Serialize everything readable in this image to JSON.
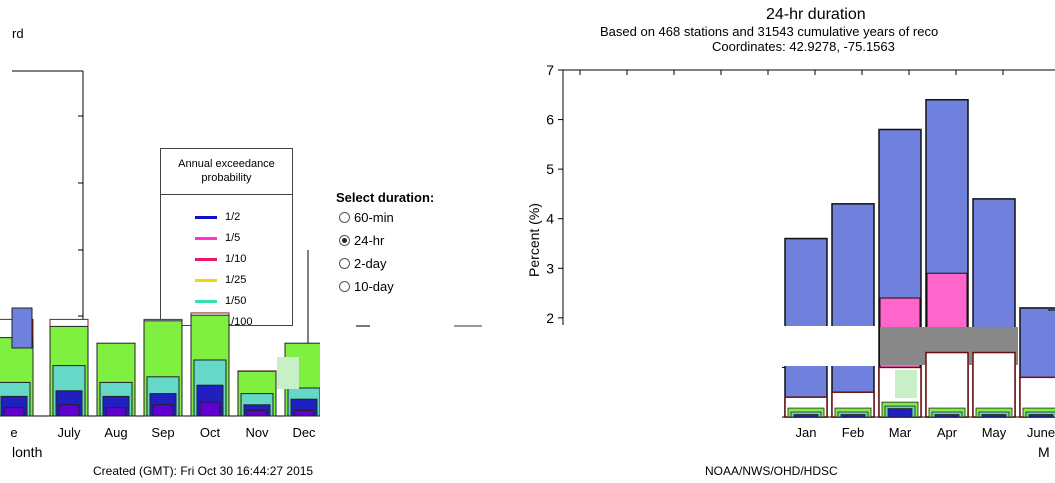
{
  "left_panel": {
    "header_fragment": "rd",
    "x_axis_fragment": "lonth",
    "created": "Created (GMT): Fri Oct 30 16:44:27 2015",
    "legend": {
      "title_line1": "Annual exceedance",
      "title_line2": "probability",
      "items": [
        {
          "label": "1/2",
          "color": "#1010c8"
        },
        {
          "label": "1/5",
          "color": "#ff33cc"
        },
        {
          "label": "1/10",
          "color": "#e8186a"
        },
        {
          "label": "1/25",
          "color": "#f5d800"
        },
        {
          "label": "1/50",
          "color": "#33e0b0"
        },
        {
          "label": "1/100",
          "color": "#40d020"
        }
      ]
    }
  },
  "duration_selector": {
    "label": "Select duration:",
    "options": [
      {
        "label": "60-min",
        "checked": false
      },
      {
        "label": "24-hr",
        "checked": true
      },
      {
        "label": "2-day",
        "checked": false
      },
      {
        "label": "10-day",
        "checked": false
      }
    ]
  },
  "right_panel": {
    "title": "24-hr duration",
    "subtitle1": "Based on 468 stations and 31543 cumulative years of reco",
    "subtitle2": "Coordinates: 42.9278, -75.1563",
    "ylabel": "Percent (%)",
    "x_axis_fragment": "M",
    "footer": "NOAA/NWS/OHD/HDSC"
  },
  "colors": {
    "bar_blue": "#7080dd",
    "bar_pink": "#ff66cc",
    "bar_green": "#80f040",
    "bar_teal": "#66d8c8",
    "bar_navy": "#2020c0",
    "bar_purple": "#6000d0"
  },
  "chart_data": [
    {
      "type": "bar",
      "title": "",
      "xlabel": "lonth",
      "ylabel": "",
      "categories": [
        "e",
        "July",
        "Aug",
        "Sep",
        "Oct",
        "Nov",
        "Dec"
      ],
      "series": [
        {
          "name": "1/100",
          "values": [
            1.4,
            1.6,
            1.3,
            1.7,
            1.8,
            0.8,
            1.3
          ]
        },
        {
          "name": "1/50",
          "values": [
            0.6,
            0.9,
            0.6,
            0.7,
            1.0,
            0.4,
            0.5
          ]
        },
        {
          "name": "1/25",
          "values": [
            0.35,
            0.45,
            0.35,
            0.4,
            0.55,
            0.2,
            0.3
          ]
        },
        {
          "name": "1/2",
          "values": [
            0.15,
            0.2,
            0.15,
            0.2,
            0.25,
            0.1,
            0.1
          ]
        }
      ]
    },
    {
      "type": "bar",
      "title": "24-hr duration",
      "subtitle": "Based on 468 stations and 31543 cumulative years of reco",
      "xlabel": "",
      "ylabel": "Percent (%)",
      "ylim": [
        0,
        7
      ],
      "yticks": [
        0,
        1,
        2,
        3,
        4,
        5,
        6,
        7
      ],
      "categories": [
        "Jan",
        "Feb",
        "Mar",
        "Apr",
        "May",
        "June"
      ],
      "series": [
        {
          "name": "1/2",
          "values": [
            3.6,
            4.3,
            5.8,
            6.4,
            4.4,
            2.2
          ]
        },
        {
          "name": "1/5",
          "values": [
            null,
            null,
            2.4,
            2.9,
            null,
            null
          ]
        },
        {
          "name": "1/100",
          "values": [
            0.4,
            0.5,
            1.0,
            1.3,
            1.3,
            0.8
          ]
        }
      ]
    }
  ]
}
